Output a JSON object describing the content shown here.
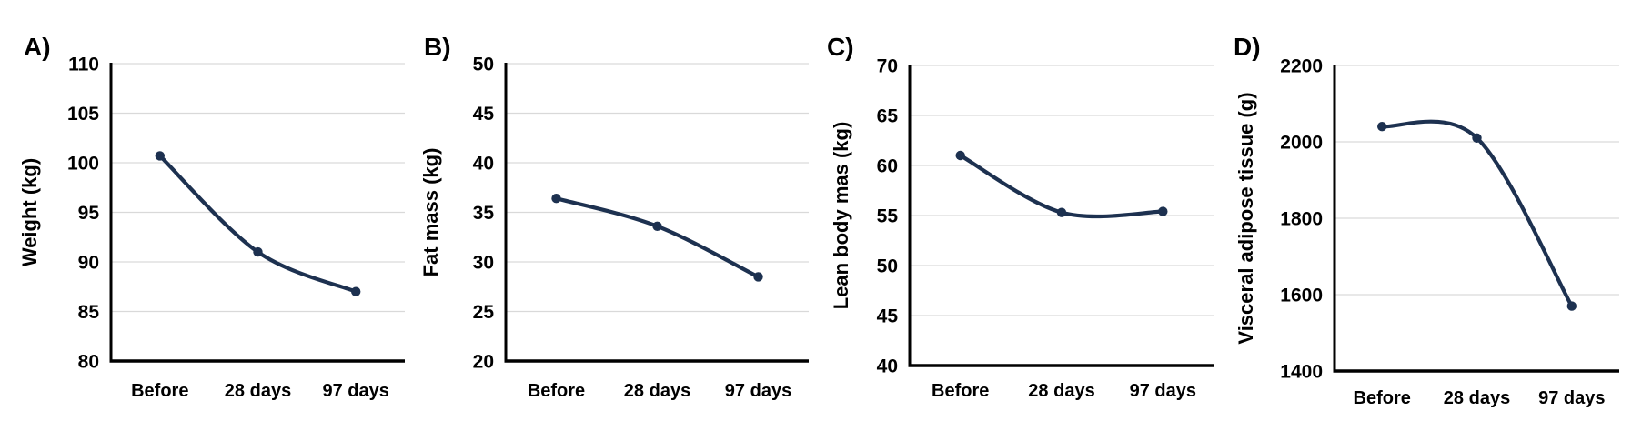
{
  "figure": {
    "background": "#ffffff",
    "description_labels": [
      "A)",
      "B)",
      "C)",
      "D)"
    ]
  },
  "colors": {
    "line": "#1d3150",
    "marker": "#1d3150",
    "gridline": "#d9d9d9",
    "axis": "#000000",
    "text": "#000000"
  },
  "chart_data": [
    {
      "type": "line",
      "panel_label": "A)",
      "ylabel": "Weight (kg)",
      "categories": [
        "Before",
        "28 days",
        "97 days"
      ],
      "values": [
        100.7,
        91,
        87
      ],
      "ylim": [
        80,
        110
      ],
      "yticks": [
        80,
        85,
        90,
        95,
        100,
        105,
        110
      ],
      "grid": true,
      "legend": "none",
      "smooth": true,
      "marker": "circle"
    },
    {
      "type": "line",
      "panel_label": "B)",
      "ylabel": "Fat mass (kg)",
      "categories": [
        "Before",
        "28 days",
        "97 days"
      ],
      "values": [
        36.4,
        33.6,
        28.5
      ],
      "ylim": [
        20,
        50
      ],
      "yticks": [
        20,
        25,
        30,
        35,
        40,
        45,
        50
      ],
      "grid": true,
      "legend": "none",
      "smooth": true,
      "marker": "circle"
    },
    {
      "type": "line",
      "panel_label": "C)",
      "ylabel": "Lean body mas (kg)",
      "categories": [
        "Before",
        "28 days",
        "97 days"
      ],
      "values": [
        61,
        55.3,
        55.4
      ],
      "ylim": [
        40,
        70
      ],
      "yticks": [
        40,
        45,
        50,
        55,
        60,
        65,
        70
      ],
      "grid": true,
      "legend": "none",
      "smooth": true,
      "marker": "circle"
    },
    {
      "type": "line",
      "panel_label": "D)",
      "ylabel": "Visceral adipose tissue (g)",
      "categories": [
        "Before",
        "28 days",
        "97 days"
      ],
      "values": [
        2040,
        2010,
        1570
      ],
      "ylim": [
        1400,
        2200
      ],
      "yticks": [
        1400,
        1600,
        1800,
        2000,
        2200
      ],
      "grid": true,
      "legend": "none",
      "smooth": true,
      "marker": "circle"
    }
  ]
}
